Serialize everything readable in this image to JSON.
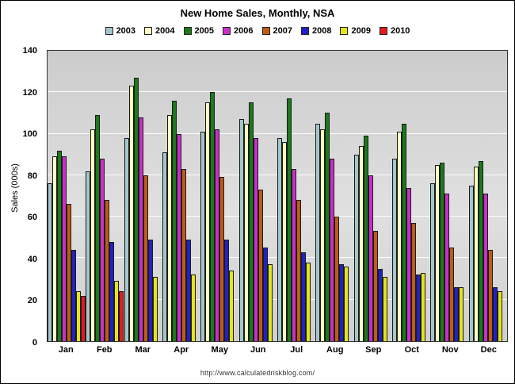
{
  "source": "http://www.calculatedriskblog.com/",
  "chart_data": {
    "type": "bar",
    "title": "New Home Sales, Monthly, NSA",
    "ylabel": "Sales (000s)",
    "xlabel": "",
    "ylim": [
      0,
      140
    ],
    "ytick_step": 20,
    "grid": true,
    "legend_position": "top",
    "plot_background": "#d6d6d6",
    "categories": [
      "Jan",
      "Feb",
      "Mar",
      "Apr",
      "May",
      "Jun",
      "Jul",
      "Aug",
      "Sep",
      "Oct",
      "Nov",
      "Dec"
    ],
    "series": [
      {
        "name": "2003",
        "color": "#A3C6CB",
        "values": [
          76,
          82,
          98,
          91,
          101,
          107,
          98,
          105,
          90,
          88,
          76,
          75
        ]
      },
      {
        "name": "2004",
        "color": "#FFFFC2",
        "values": [
          89,
          102,
          123,
          109,
          115,
          105,
          96,
          102,
          94,
          101,
          85,
          84
        ]
      },
      {
        "name": "2005",
        "color": "#1B7A1B",
        "values": [
          92,
          109,
          127,
          116,
          120,
          115,
          117,
          110,
          99,
          105,
          86,
          87
        ]
      },
      {
        "name": "2006",
        "color": "#CB2FC9",
        "values": [
          89,
          88,
          108,
          100,
          102,
          98,
          83,
          88,
          80,
          74,
          71,
          71
        ]
      },
      {
        "name": "2007",
        "color": "#BE5B17",
        "values": [
          66,
          68,
          80,
          83,
          79,
          73,
          68,
          60,
          53,
          57,
          45,
          44
        ]
      },
      {
        "name": "2008",
        "color": "#2121C8",
        "values": [
          44,
          48,
          49,
          49,
          49,
          45,
          43,
          37,
          35,
          32,
          26,
          26
        ]
      },
      {
        "name": "2009",
        "color": "#E4E41C",
        "values": [
          24,
          29,
          31,
          32,
          34,
          37,
          38,
          36,
          31,
          33,
          26,
          24
        ]
      },
      {
        "name": "2010",
        "color": "#E51A1A",
        "values": [
          22,
          24,
          null,
          null,
          null,
          null,
          null,
          null,
          null,
          null,
          null,
          null
        ]
      }
    ]
  }
}
